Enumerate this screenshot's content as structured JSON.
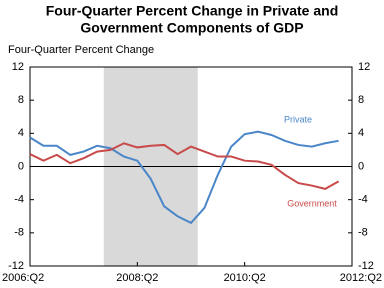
{
  "chart_data": {
    "type": "line",
    "title": [
      "Four-Quarter Percent Change in Private and",
      "Government Components of GDP"
    ],
    "ylabel": "Four-Quarter Percent Change",
    "x": [
      "2006:Q2",
      "2006:Q3",
      "2006:Q4",
      "2007:Q1",
      "2007:Q2",
      "2007:Q3",
      "2007:Q4",
      "2008:Q1",
      "2008:Q2",
      "2008:Q3",
      "2008:Q4",
      "2009:Q1",
      "2009:Q2",
      "2009:Q3",
      "2009:Q4",
      "2010:Q1",
      "2010:Q2",
      "2010:Q3",
      "2010:Q4",
      "2011:Q1",
      "2011:Q2",
      "2011:Q3",
      "2011:Q4",
      "2012:Q1"
    ],
    "xlim": [
      "2006:Q2",
      "2012:Q2"
    ],
    "xticks": [
      "2006:Q2",
      "2008:Q2",
      "2010:Q2",
      "2012:Q2"
    ],
    "ylim": [
      -12,
      12
    ],
    "yticks": [
      -12,
      -8,
      -4,
      0,
      4,
      8,
      12
    ],
    "y2lim": [
      -12,
      12
    ],
    "y2ticks": [
      -12,
      -8,
      -4,
      0,
      4,
      8,
      12
    ],
    "recession": [
      "2007:Q4",
      "2009:Q2"
    ],
    "series": [
      {
        "name": "Private",
        "color": "#4a86c8",
        "values": [
          3.5,
          2.5,
          2.5,
          1.4,
          1.8,
          2.5,
          2.2,
          1.2,
          0.7,
          -1.5,
          -4.8,
          -6.0,
          -6.8,
          -5.0,
          -1.0,
          2.4,
          3.9,
          4.2,
          3.8,
          3.1,
          2.6,
          2.4,
          2.8,
          3.1
        ]
      },
      {
        "name": "Government",
        "color": "#c84a4a",
        "values": [
          1.5,
          0.7,
          1.4,
          0.4,
          1.0,
          1.8,
          2.0,
          2.8,
          2.3,
          2.5,
          2.6,
          1.5,
          2.4,
          1.8,
          1.2,
          1.2,
          0.7,
          0.6,
          0.2,
          -1.0,
          -2.0,
          -2.3,
          -2.7,
          -1.8
        ]
      }
    ]
  }
}
